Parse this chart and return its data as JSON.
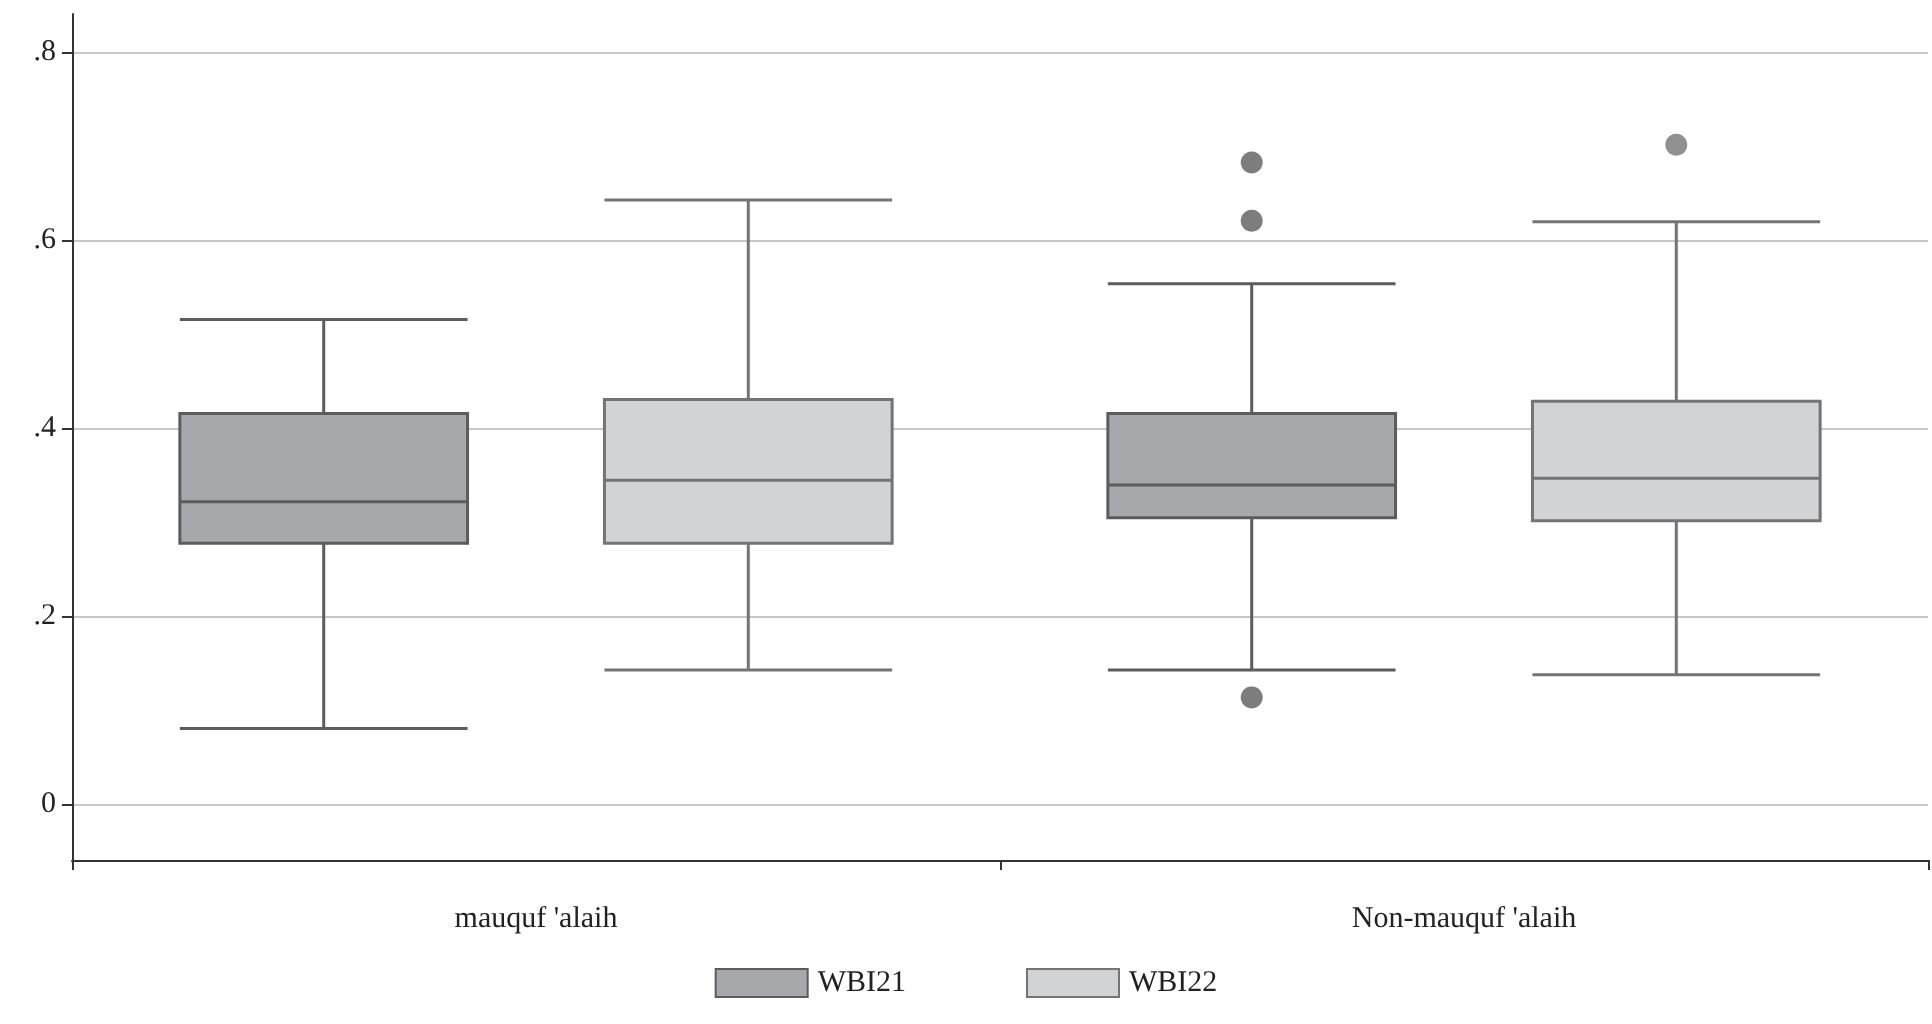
{
  "chart_data": {
    "type": "box",
    "categories": [
      "mauquf 'alaih",
      "Non-mauquf 'alaih"
    ],
    "series": [
      {
        "name": "WBI21",
        "color": "#a7a8ab",
        "boxes": [
          {
            "low": 0.08,
            "q1": 0.277,
            "median": 0.321,
            "q3": 0.415,
            "high": 0.515
          },
          {
            "low": 0.142,
            "q1": 0.304,
            "median": 0.339,
            "q3": 0.415,
            "high": 0.553,
            "outliers": [
              0.682,
              0.62,
              0.113
            ]
          }
        ]
      },
      {
        "name": "WBI22",
        "color": "#d2d3d5",
        "boxes": [
          {
            "low": 0.142,
            "q1": 0.277,
            "median": 0.344,
            "q3": 0.43,
            "high": 0.642
          },
          {
            "low": 0.137,
            "q1": 0.301,
            "median": 0.346,
            "q3": 0.428,
            "high": 0.619,
            "outliers": [
              0.701
            ]
          }
        ]
      }
    ],
    "ylim": [
      -0.06,
      0.84
    ],
    "yticks": [
      {
        "value": 0,
        "label": "0"
      },
      {
        "value": 0.2,
        "label": ".2"
      },
      {
        "value": 0.4,
        "label": ".4"
      },
      {
        "value": 0.6,
        "label": ".6"
      },
      {
        "value": 0.8,
        "label": ".8"
      }
    ],
    "grid": "y",
    "legend": "bottom"
  }
}
